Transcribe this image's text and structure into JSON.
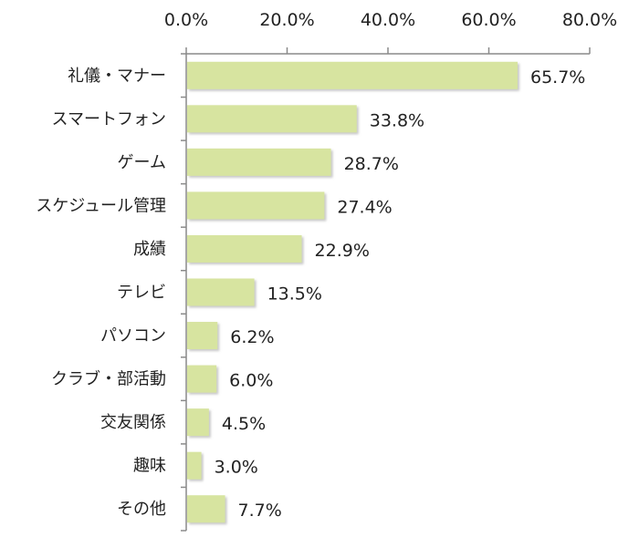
{
  "chart_data": {
    "type": "bar",
    "orientation": "horizontal",
    "title": "",
    "xlabel": "",
    "ylabel": "",
    "categories": [
      "礼儀・マナー",
      "スマートフォン",
      "ゲーム",
      "スケジュール管理",
      "成績",
      "テレビ",
      "パソコン",
      "クラブ・部活動",
      "交友関係",
      "趣味",
      "その他"
    ],
    "values": [
      65.7,
      33.8,
      28.7,
      27.4,
      22.9,
      13.5,
      6.2,
      6.0,
      4.5,
      3.0,
      7.7
    ],
    "value_labels": [
      "65.7%",
      "33.8%",
      "28.7%",
      "27.4%",
      "22.9%",
      "13.5%",
      "6.2%",
      "6.0%",
      "4.5%",
      "3.0%",
      "7.7%"
    ],
    "xlim": [
      0,
      80
    ],
    "x_ticks": [
      0,
      20,
      40,
      60,
      80
    ],
    "x_tick_labels": [
      "0.0%",
      "20.0%",
      "40.0%",
      "60.0%",
      "80.0%"
    ],
    "axis_position": "top",
    "grid": false,
    "legend": "none",
    "colors": {
      "bar_fill": "#d7e4a0",
      "bar_shadow": "#b8b8b8",
      "axis": "#8a8a8a",
      "text": "#222222"
    }
  }
}
